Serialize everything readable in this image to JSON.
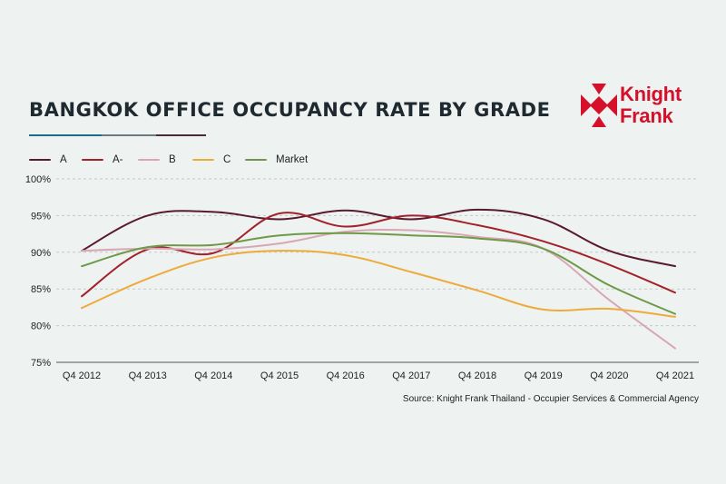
{
  "header": {
    "title": "BANGKOK OFFICE OCCUPANCY RATE BY GRADE",
    "rule_colors": [
      "#1a6b8c",
      "#6b7b80",
      "#4a2b3a",
      "#8a8a8a"
    ]
  },
  "logo": {
    "line1": "Knight",
    "line2": "Frank",
    "color": "#d4102a"
  },
  "source": "Source: Knight Frank Thailand - Occupier Services & Commercial Agency",
  "chart_data": {
    "type": "line",
    "title": "BANGKOK OFFICE OCCUPANCY RATE BY GRADE",
    "categories": [
      "Q4 2012",
      "Q4 2013",
      "Q4 2014",
      "Q4 2015",
      "Q4 2016",
      "Q4 2017",
      "Q4 2018",
      "Q4 2019",
      "Q4 2020",
      "Q4 2021"
    ],
    "ylim": [
      75,
      100
    ],
    "yticks": [
      75,
      80,
      85,
      90,
      95,
      100
    ],
    "ytick_labels": [
      "75%",
      "80%",
      "85%",
      "90%",
      "95%",
      "100%"
    ],
    "grid": "horizontal dashed",
    "legend_position": "top-left",
    "series": [
      {
        "name": "A",
        "color": "#5a1a2e",
        "values": [
          90.2,
          95.0,
          95.5,
          94.5,
          95.7,
          94.5,
          95.8,
          94.5,
          90.2,
          88.1
        ]
      },
      {
        "name": "A-",
        "color": "#a3212a",
        "values": [
          84.0,
          90.4,
          89.9,
          95.3,
          93.5,
          95.0,
          93.7,
          91.5,
          88.3,
          84.5
        ]
      },
      {
        "name": "B",
        "color": "#d9a7b4",
        "values": [
          90.2,
          90.5,
          90.4,
          91.2,
          92.8,
          93.0,
          92.1,
          90.5,
          83.5,
          76.9
        ]
      },
      {
        "name": "C",
        "color": "#eeaa3a",
        "values": [
          82.4,
          86.4,
          89.3,
          90.2,
          89.6,
          87.3,
          84.8,
          82.2,
          82.3,
          81.2
        ]
      },
      {
        "name": "Market",
        "color": "#6e9a48",
        "values": [
          88.1,
          90.7,
          91.0,
          92.3,
          92.6,
          92.3,
          91.9,
          90.5,
          85.5,
          81.6
        ]
      }
    ]
  }
}
